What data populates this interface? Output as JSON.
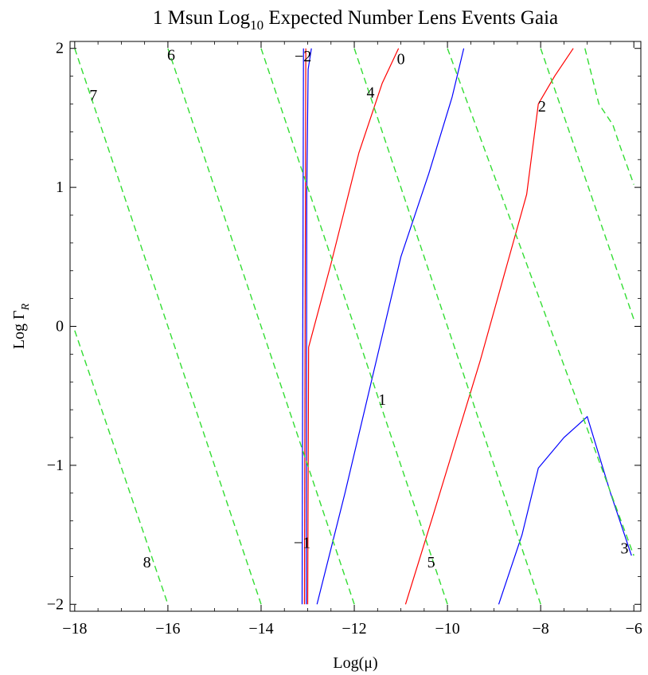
{
  "chart_data": {
    "type": "line",
    "title_parts": [
      "1 Msun Log",
      "10",
      " Expected Number Lens Events Gaia"
    ],
    "xlabel": "Log(μ)",
    "ylabel_parts": [
      "Log Γ",
      "R"
    ],
    "xlim": [
      -18.1,
      -5.85
    ],
    "ylim": [
      -2.05,
      2.05
    ],
    "xticks": [
      -18,
      -16,
      -14,
      -12,
      -10,
      -8,
      -6
    ],
    "xtick_labels": [
      "−18",
      "−16",
      "−14",
      "−12",
      "−10",
      "−8",
      "−6"
    ],
    "yticks": [
      -2,
      -1,
      0,
      1,
      2
    ],
    "ytick_labels": [
      "−2",
      "−1",
      "0",
      "1",
      "2"
    ],
    "grid": false,
    "colors": {
      "red": "#ff0000",
      "blue": "#0000ff",
      "green": "#33dd33"
    },
    "series": [
      {
        "color": "blue",
        "dashed": false,
        "points": [
          [
            -13.12,
            -2
          ],
          [
            -13.09,
            2
          ]
        ]
      },
      {
        "color": "red",
        "dashed": false,
        "points": [
          [
            -13.07,
            -2
          ],
          [
            -13.04,
            2
          ]
        ]
      },
      {
        "color": "blue",
        "dashed": false,
        "points": [
          [
            -13.03,
            -2
          ],
          [
            -13.02,
            0.95
          ],
          [
            -12.99,
            1.85
          ],
          [
            -12.92,
            2
          ]
        ]
      },
      {
        "color": "red",
        "dashed": false,
        "points": [
          [
            -13.0,
            -2
          ],
          [
            -12.98,
            -0.15
          ],
          [
            -12.5,
            0.45
          ],
          [
            -11.9,
            1.25
          ],
          [
            -11.4,
            1.75
          ],
          [
            -11.05,
            2
          ]
        ]
      },
      {
        "color": "blue",
        "dashed": false,
        "points": [
          [
            -12.8,
            -2
          ],
          [
            -12.2,
            -1.2
          ],
          [
            -11.6,
            -0.35
          ],
          [
            -11.0,
            0.5
          ],
          [
            -10.4,
            1.1
          ],
          [
            -9.9,
            1.65
          ],
          [
            -9.65,
            2
          ]
        ]
      },
      {
        "color": "red",
        "dashed": false,
        "points": [
          [
            -10.9,
            -2
          ],
          [
            -10.3,
            -1.35
          ],
          [
            -9.8,
            -0.8
          ],
          [
            -9.3,
            -0.25
          ],
          [
            -8.8,
            0.35
          ],
          [
            -8.3,
            0.95
          ],
          [
            -8.05,
            1.6
          ],
          [
            -7.7,
            1.8
          ],
          [
            -7.3,
            2
          ]
        ]
      },
      {
        "color": "blue",
        "dashed": false,
        "points": [
          [
            -8.9,
            -2
          ],
          [
            -8.4,
            -1.5
          ],
          [
            -8.05,
            -1.02
          ],
          [
            -7.5,
            -0.8
          ],
          [
            -7.0,
            -0.65
          ],
          [
            -6.5,
            -1.2
          ],
          [
            -6.05,
            -1.65
          ]
        ]
      },
      {
        "color": "green",
        "dashed": true,
        "points": [
          [
            -18.0,
            -0.03
          ],
          [
            -16.0,
            -2
          ]
        ]
      },
      {
        "color": "green",
        "dashed": true,
        "points": [
          [
            -18.0,
            2
          ],
          [
            -14.0,
            -2
          ]
        ]
      },
      {
        "color": "green",
        "dashed": true,
        "points": [
          [
            -16.0,
            2
          ],
          [
            -12.0,
            -2
          ]
        ]
      },
      {
        "color": "green",
        "dashed": true,
        "points": [
          [
            -14.0,
            2
          ],
          [
            -10.0,
            -2
          ]
        ]
      },
      {
        "color": "green",
        "dashed": true,
        "points": [
          [
            -12.0,
            2
          ],
          [
            -8.0,
            -2
          ]
        ]
      },
      {
        "color": "green",
        "dashed": true,
        "points": [
          [
            -10.0,
            2
          ],
          [
            -6.0,
            -1.65
          ]
        ]
      },
      {
        "color": "green",
        "dashed": true,
        "points": [
          [
            -8.0,
            2
          ],
          [
            -6.0,
            0.05
          ]
        ]
      },
      {
        "color": "green",
        "dashed": true,
        "points": [
          [
            -7.05,
            2
          ],
          [
            -6.75,
            1.6
          ],
          [
            -6.45,
            1.45
          ],
          [
            -6.3,
            1.3
          ],
          [
            -6.0,
            1.02
          ]
        ]
      }
    ],
    "contour_labels": [
      {
        "text": "−2",
        "x": -13.1,
        "y": 1.94
      },
      {
        "text": "−1",
        "x": -13.12,
        "y": -1.56
      },
      {
        "text": "0",
        "x": -11.0,
        "y": 1.92
      },
      {
        "text": "1",
        "x": -11.4,
        "y": -0.53
      },
      {
        "text": "2",
        "x": -7.97,
        "y": 1.58
      },
      {
        "text": "3",
        "x": -6.2,
        "y": -1.6
      },
      {
        "text": "4",
        "x": -11.65,
        "y": 1.68
      },
      {
        "text": "5",
        "x": -10.35,
        "y": -1.7
      },
      {
        "text": "6",
        "x": -15.93,
        "y": 1.95
      },
      {
        "text": "7",
        "x": -17.6,
        "y": 1.66
      },
      {
        "text": "8",
        "x": -16.45,
        "y": -1.7
      }
    ]
  }
}
